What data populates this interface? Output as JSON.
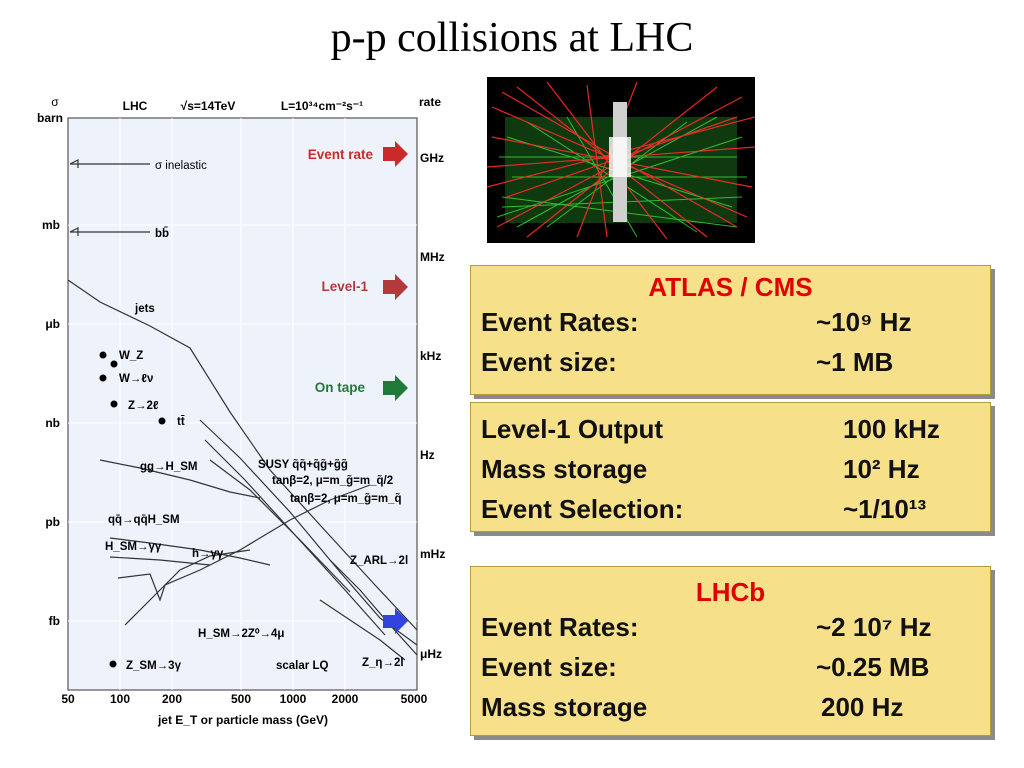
{
  "title": "p-p collisions at LHC",
  "plot": {
    "header": {
      "sigma": "σ",
      "barn": "barn",
      "lhc": "LHC",
      "sqrts": "√s=14TeV",
      "lumi": "L=10³⁴cm⁻²s⁻¹",
      "rate": "rate"
    },
    "left_ticks": [
      "mb",
      "μb",
      "nb",
      "pb",
      "fb"
    ],
    "right_ticks": [
      "GHz",
      "MHz",
      "kHz",
      "Hz",
      "mHz",
      "μHz"
    ],
    "x_ticks": [
      "50",
      "100",
      "200",
      "500",
      "1000",
      "2000",
      "5000"
    ],
    "x_label": "jet E_T or particle mass (GeV)",
    "processes": {
      "sigma_inel": "σ inelastic",
      "bb": "bb̄",
      "jets": "jets",
      "wz": "W_Z",
      "wlv": "W→ℓν",
      "z2l": "Z→2ℓ",
      "tt": "tt̄",
      "gg_h": "gg→H_SM",
      "susy": "SUSY q̃q̃+q̃g̃+g̃g̃",
      "tanb1": "tanβ=2, μ=m_g̃=m_q̃/2",
      "tanb2": "tanβ=2, μ=m_g̃=m_q̃",
      "qq_h": "qq̄→qq̄H_SM",
      "h_sm_gg": "H_SM→γγ",
      "h_gg": "h→γγ",
      "z_arl": "Z_ARL→2l",
      "h_4mu": "H_SM→2Z⁰→4μ",
      "z_sm": "Z_SM→3γ",
      "scalar_lq": "scalar LQ",
      "z_eta": "Z_η→2l"
    },
    "arrows": {
      "event_rate": "Event rate",
      "level1": "Level-1",
      "on_tape": "On tape",
      "colors": {
        "event_rate": "#cc2a2a",
        "level1": "#b33a3a",
        "on_tape": "#1f7a3a",
        "bottom": "#3344dd"
      }
    }
  },
  "boxes": {
    "atlas": {
      "header": "ATLAS / CMS",
      "rows": [
        {
          "label": "Event Rates:",
          "value": "~10⁹ Hz"
        },
        {
          "label": "Event size:",
          "value": "~1 MB"
        }
      ]
    },
    "trigger": {
      "rows": [
        {
          "label": "Level-1 Output",
          "value": "100 kHz"
        },
        {
          "label": "Mass storage",
          "value": "10² Hz"
        },
        {
          "label": "Event Selection:",
          "value": "~1/10¹³"
        }
      ]
    },
    "lhcb": {
      "header": "LHCb",
      "rows": [
        {
          "label": "Event Rates:",
          "value": "~2 10⁷ Hz"
        },
        {
          "label": "Event size:",
          "value": "~0.25 MB"
        },
        {
          "label": "Mass storage",
          "value": "200 Hz"
        }
      ]
    }
  }
}
